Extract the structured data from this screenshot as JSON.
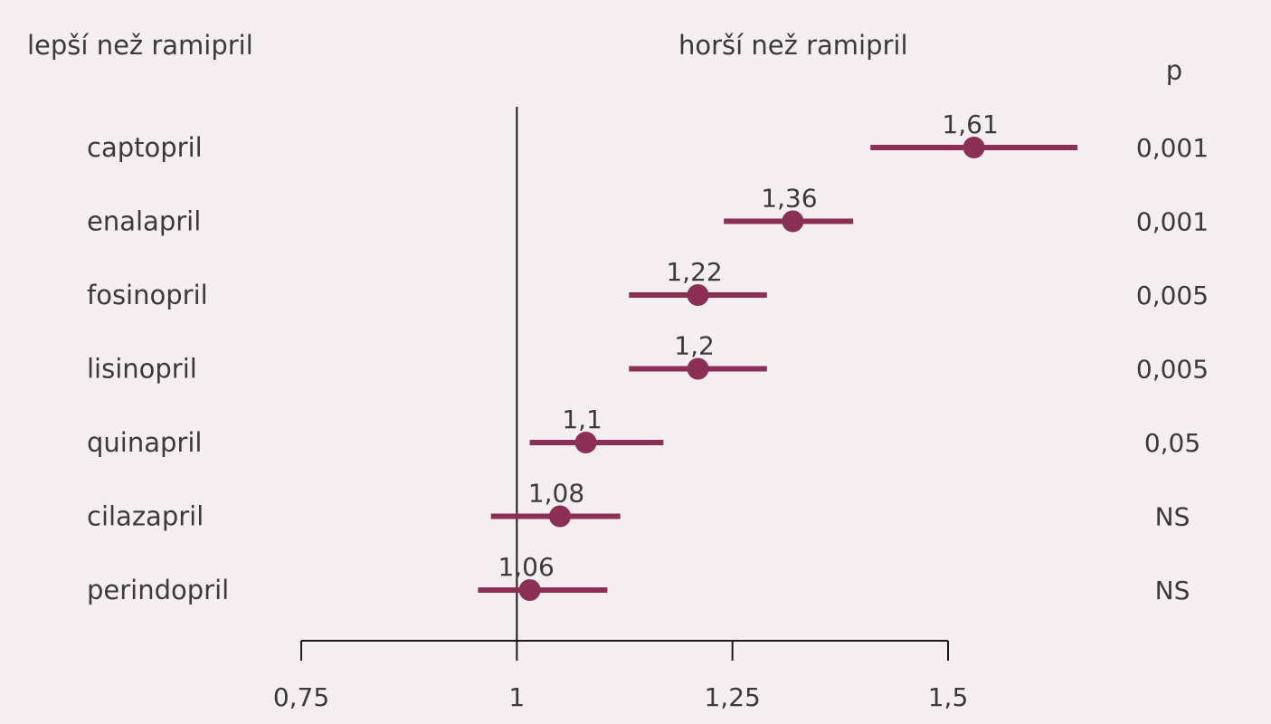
{
  "chart_data": {
    "type": "forest",
    "left_header": "lepší než ramipril",
    "right_header": "horší než ramipril",
    "p_header": "p",
    "reference_value": 1,
    "xlim": [
      0.75,
      1.5
    ],
    "xticks": [
      0.75,
      1,
      1.25,
      1.5
    ],
    "xtick_labels": [
      "0,75",
      "1",
      "1,25",
      "1,5"
    ],
    "marker_color": "#8c2f55",
    "rows": [
      {
        "label": "captopril",
        "value": 1.61,
        "value_label": "1,61",
        "point": 1.53,
        "ci": [
          1.41,
          1.65
        ],
        "p": "0,001"
      },
      {
        "label": "enalapril",
        "value": 1.36,
        "value_label": "1,36",
        "point": 1.32,
        "ci": [
          1.24,
          1.39
        ],
        "p": "0,001"
      },
      {
        "label": "fosinopril",
        "value": 1.22,
        "value_label": "1,22",
        "point": 1.21,
        "ci": [
          1.13,
          1.29
        ],
        "p": "0,005"
      },
      {
        "label": "lisinopril",
        "value": 1.2,
        "value_label": "1,2",
        "point": 1.21,
        "ci": [
          1.13,
          1.29
        ],
        "p": "0,005"
      },
      {
        "label": "quinapril",
        "value": 1.1,
        "value_label": "1,1",
        "point": 1.08,
        "ci": [
          1.015,
          1.17
        ],
        "p": "0,05"
      },
      {
        "label": "cilazapril",
        "value": 1.08,
        "value_label": "1,08",
        "point": 1.05,
        "ci": [
          0.97,
          1.12
        ],
        "p": "NS"
      },
      {
        "label": "perindopril",
        "value": 1.06,
        "value_label": "1,06",
        "point": 1.015,
        "ci": [
          0.955,
          1.105
        ],
        "p": "NS"
      }
    ]
  }
}
